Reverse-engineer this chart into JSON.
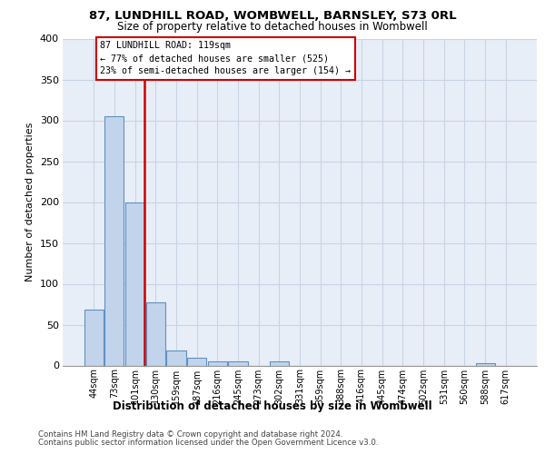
{
  "title1": "87, LUNDHILL ROAD, WOMBWELL, BARNSLEY, S73 0RL",
  "title2": "Size of property relative to detached houses in Wombwell",
  "xlabel": "Distribution of detached houses by size in Wombwell",
  "ylabel": "Number of detached properties",
  "bar_labels": [
    "44sqm",
    "73sqm",
    "101sqm",
    "130sqm",
    "159sqm",
    "187sqm",
    "216sqm",
    "245sqm",
    "273sqm",
    "302sqm",
    "331sqm",
    "359sqm",
    "388sqm",
    "416sqm",
    "445sqm",
    "474sqm",
    "502sqm",
    "531sqm",
    "560sqm",
    "588sqm",
    "617sqm"
  ],
  "bar_values": [
    68,
    305,
    199,
    77,
    18,
    10,
    5,
    5,
    0,
    5,
    0,
    0,
    0,
    0,
    0,
    0,
    0,
    0,
    0,
    3,
    0
  ],
  "bar_color": "#c2d4ec",
  "bar_edge_color": "#6090c0",
  "grid_color": "#c8d4e4",
  "background_color": "#e8eef8",
  "vline_x": 2.48,
  "vline_color": "#cc0000",
  "annotation_line1": "87 LUNDHILL ROAD: 119sqm",
  "annotation_line2": "← 77% of detached houses are smaller (525)",
  "annotation_line3": "23% of semi-detached houses are larger (154) →",
  "annotation_box_color": "#ffffff",
  "annotation_box_edge": "#cc0000",
  "ylim": [
    0,
    400
  ],
  "yticks": [
    0,
    50,
    100,
    150,
    200,
    250,
    300,
    350,
    400
  ],
  "footer1": "Contains HM Land Registry data © Crown copyright and database right 2024.",
  "footer2": "Contains public sector information licensed under the Open Government Licence v3.0."
}
